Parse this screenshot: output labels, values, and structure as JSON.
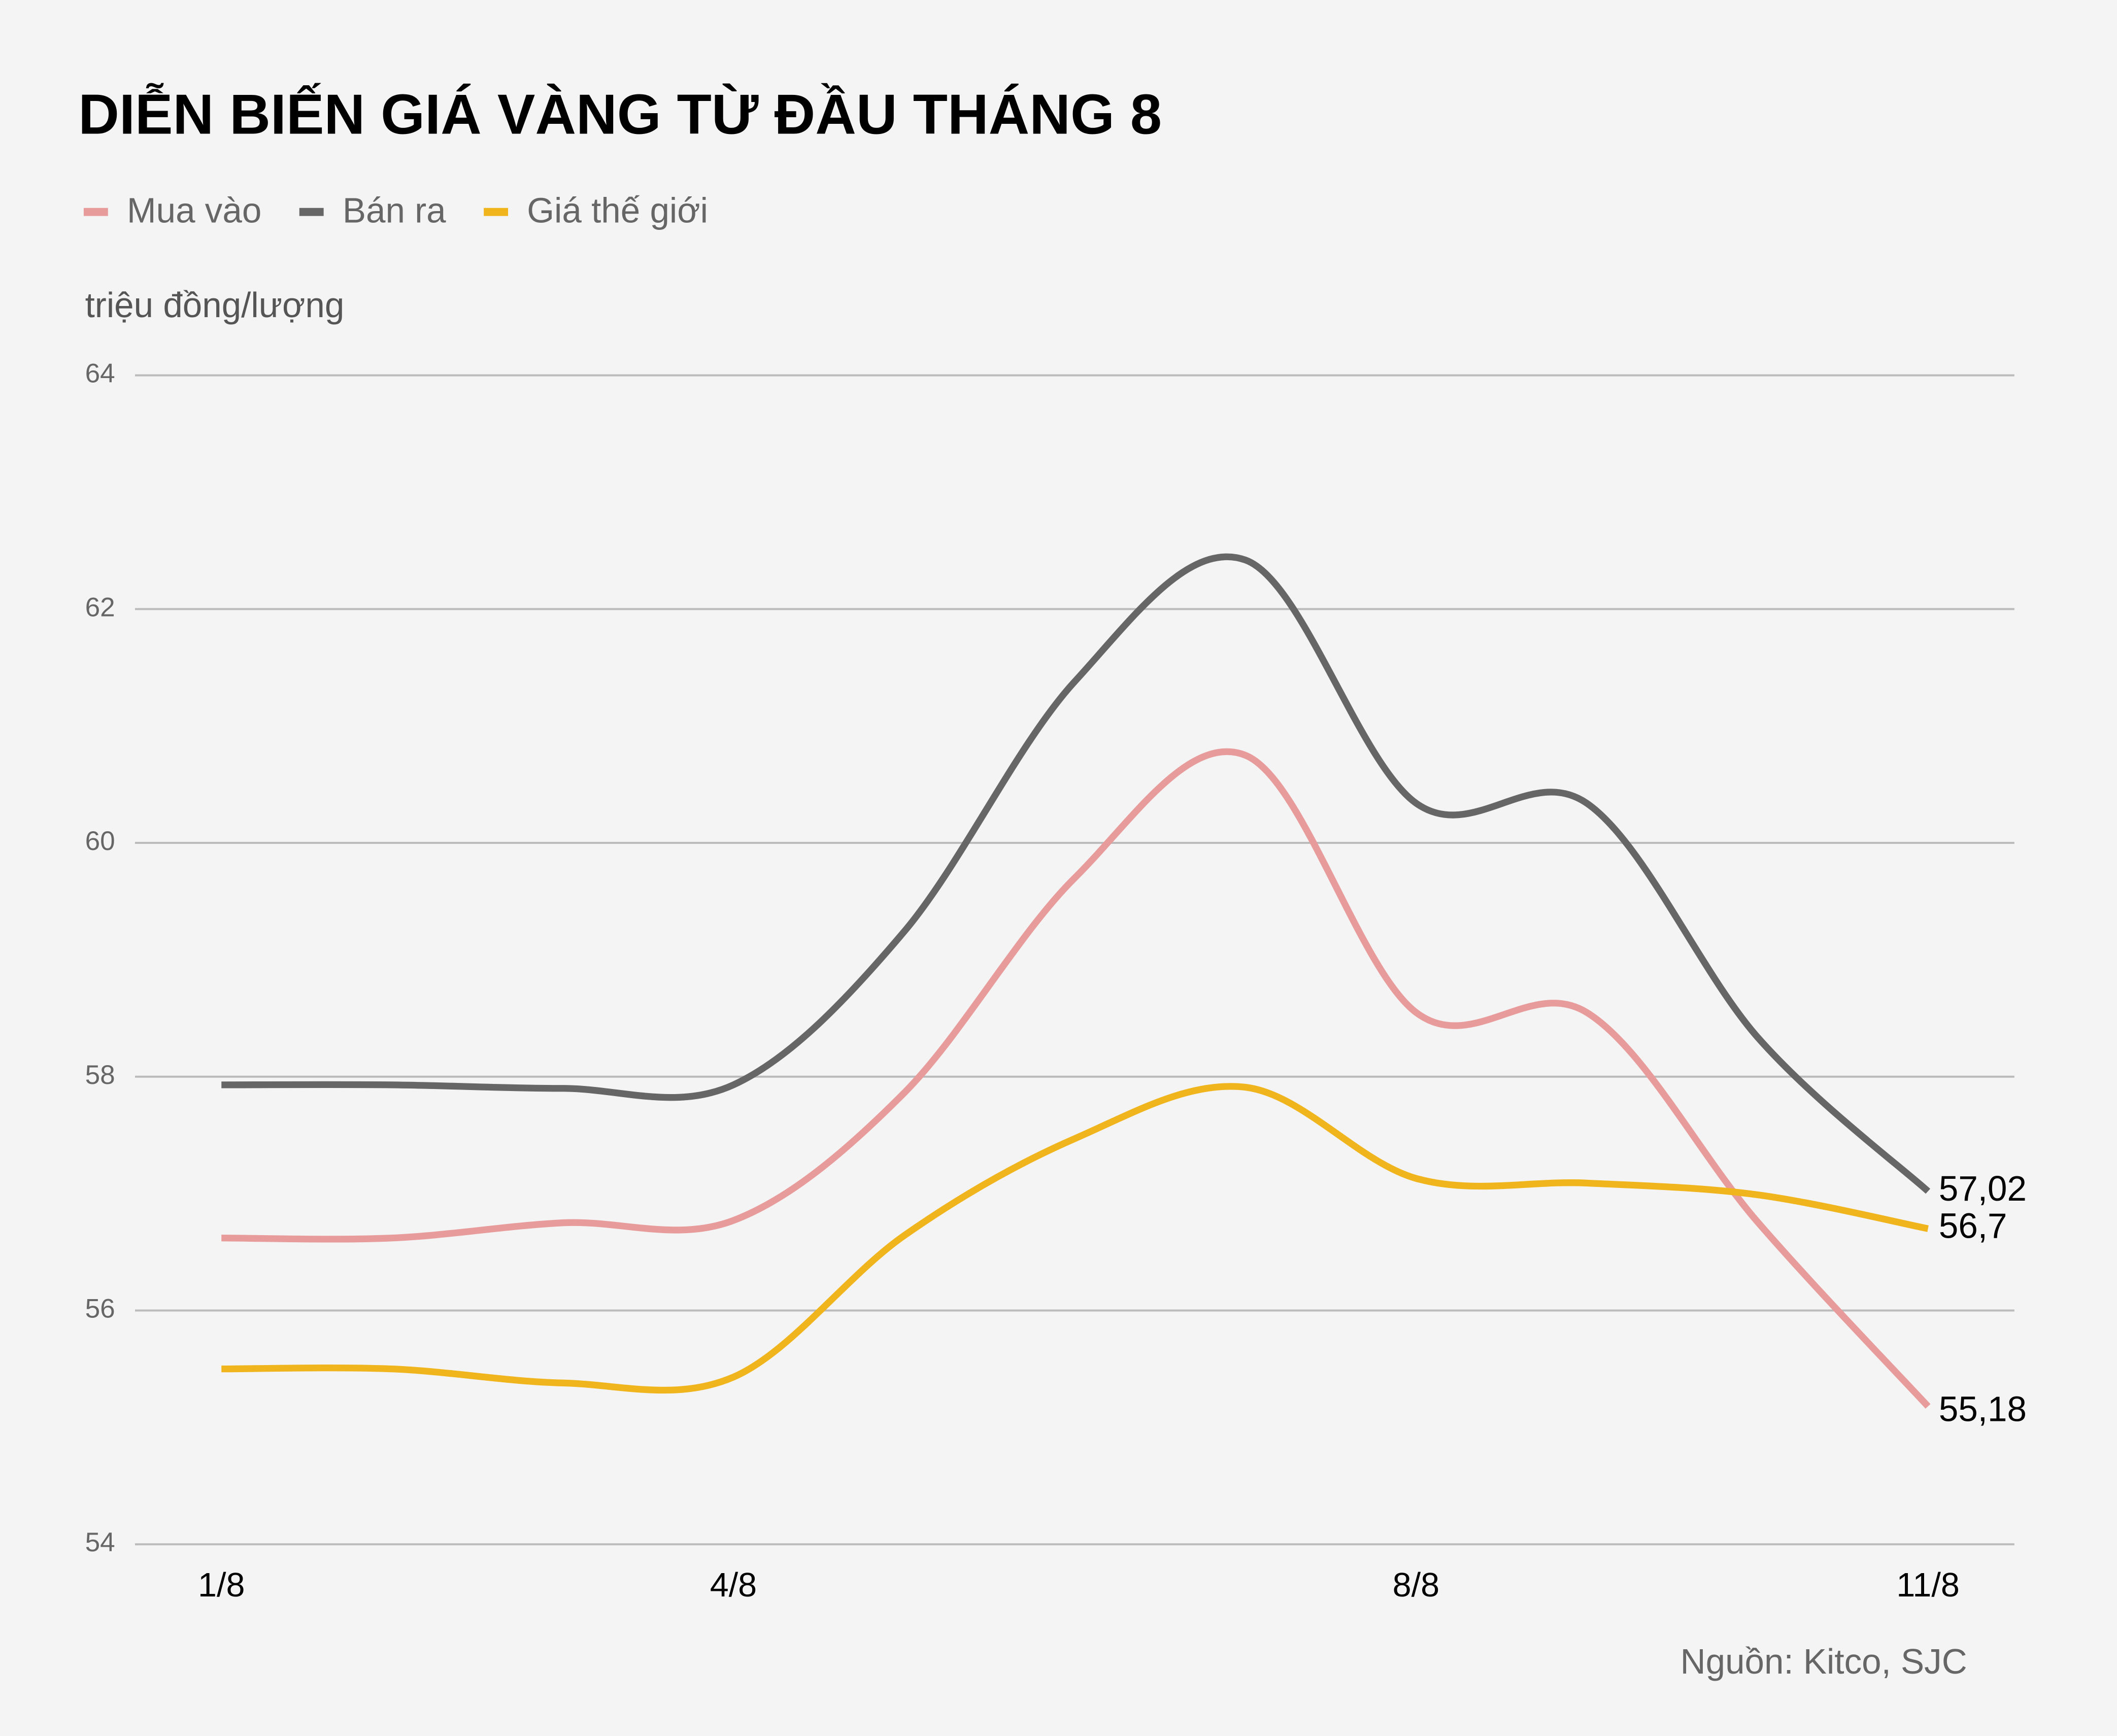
{
  "chart_data": {
    "type": "line",
    "title": "DIỄN BIẾN GIÁ VÀNG TỪ ĐẦU THÁNG 8",
    "y_label": "triệu đồng/lượng",
    "source": "Nguồn: Kitco, SJC",
    "categories": [
      "1/8",
      null,
      null,
      "4/8",
      null,
      null,
      null,
      "8/8",
      null,
      null,
      "11/8"
    ],
    "series": [
      {
        "name": "Mua vào",
        "color": "#e89b9b",
        "values": [
          56.62,
          56.62,
          56.75,
          56.77,
          57.86,
          59.7,
          60.75,
          58.55,
          58.55,
          56.76,
          55.18
        ],
        "value_labels": [
          null,
          null,
          null,
          null,
          null,
          null,
          null,
          null,
          null,
          null,
          "55,18"
        ]
      },
      {
        "name": "Bán ra",
        "color": "#666666",
        "values": [
          57.93,
          57.93,
          57.9,
          57.93,
          59.24,
          61.38,
          62.42,
          60.34,
          60.34,
          58.34,
          57.02
        ],
        "value_labels": [
          null,
          null,
          null,
          null,
          null,
          null,
          null,
          null,
          null,
          null,
          "57,02"
        ]
      },
      {
        "name": "Giá thế giới",
        "color": "#f0b41c",
        "values": [
          55.5,
          55.5,
          55.38,
          55.43,
          56.64,
          57.47,
          57.91,
          57.13,
          57.09,
          56.99,
          56.7
        ],
        "value_labels": [
          null,
          null,
          null,
          null,
          null,
          null,
          null,
          null,
          null,
          null,
          "56,7"
        ]
      }
    ],
    "ylim": [
      54,
      64
    ],
    "yticks": [
      54,
      56,
      58,
      60,
      62,
      64
    ],
    "grid": true,
    "smooth": true
  }
}
